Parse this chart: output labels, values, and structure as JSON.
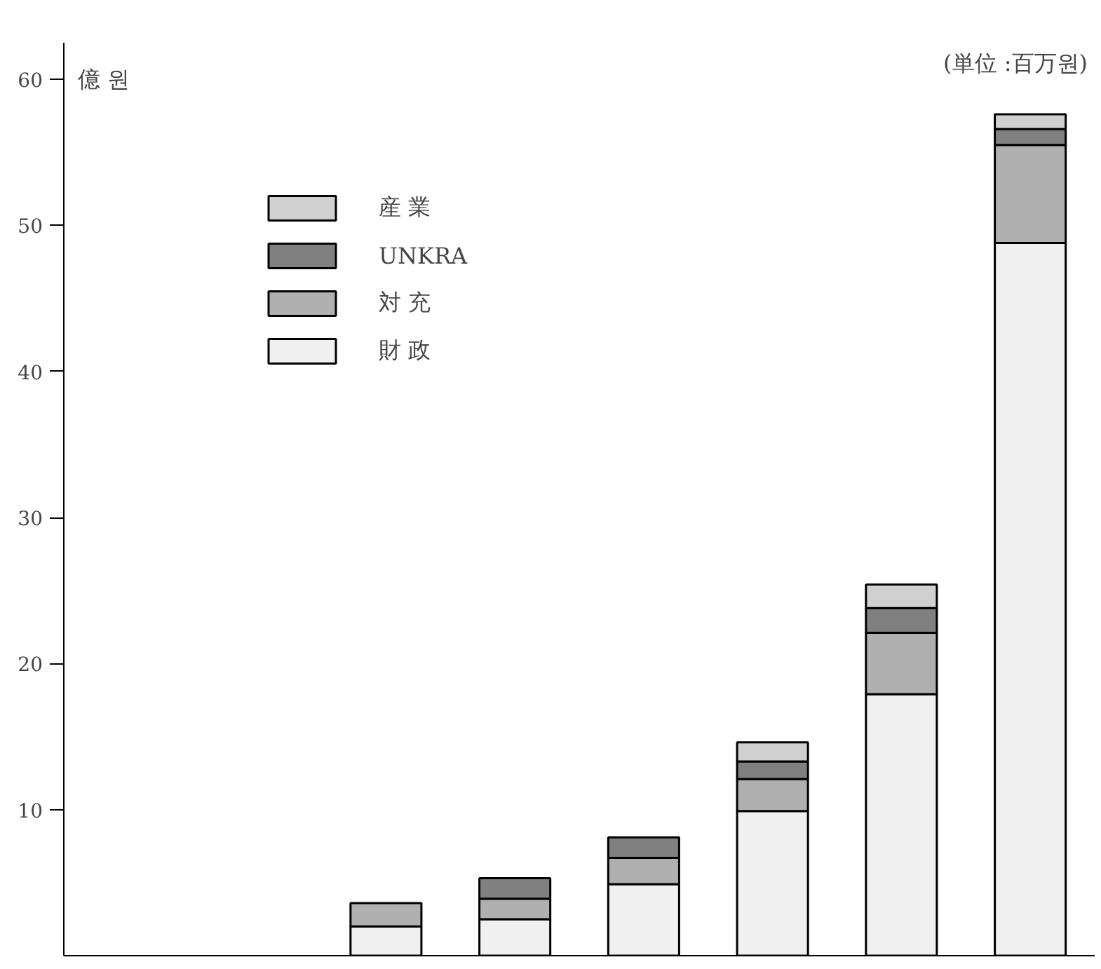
{
  "chart_data": {
    "type": "bar",
    "stacked": true,
    "ylabel": "億 원",
    "annotations": [
      "(単位 :百万원)"
    ],
    "categories": [
      null,
      null,
      null,
      null,
      null,
      null,
      null,
      null
    ],
    "series": [
      {
        "name": "財 政",
        "color": "#f0f0f0",
        "values": [
          null,
          null,
          2.0,
          2.5,
          4.9,
          9.9,
          17.9,
          48.8
        ]
      },
      {
        "name": "対 充",
        "color": "#b0b0b0",
        "values": [
          null,
          null,
          1.6,
          1.4,
          1.8,
          2.2,
          4.2,
          6.7
        ]
      },
      {
        "name": "UNKRA",
        "color": "#808080",
        "values": [
          null,
          null,
          null,
          1.4,
          1.4,
          1.2,
          1.7,
          1.1
        ]
      },
      {
        "name": "産 業",
        "color": "#d0d0d0",
        "values": [
          null,
          null,
          null,
          null,
          null,
          1.3,
          1.6,
          1.0
        ]
      }
    ],
    "ylim": [
      0,
      62.5
    ],
    "yticks": [
      10,
      20,
      30,
      40,
      50,
      60
    ],
    "grid": false,
    "legend": "top left",
    "tick_labels": "y"
  }
}
